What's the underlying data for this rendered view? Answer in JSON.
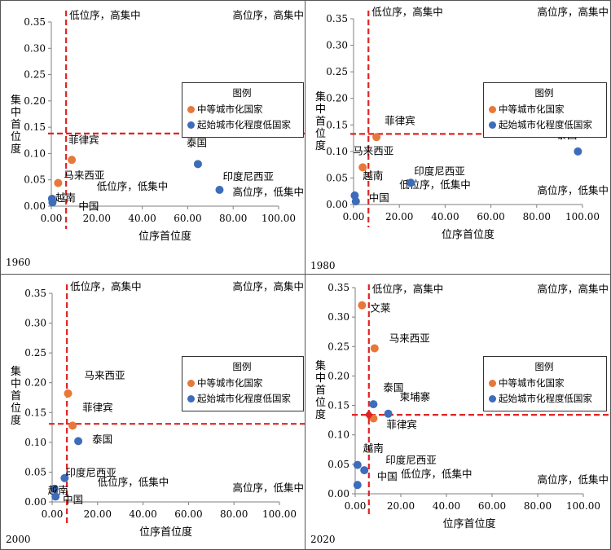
{
  "colors": {
    "medium": "#E8773A",
    "low": "#3D6DBA",
    "refline": "#E02424",
    "axis": "#7F7F7F",
    "text": "#000000"
  },
  "legend": {
    "title": "图例",
    "medium_label": "中等城市化国家",
    "low_label": "起始城市化程度低国家"
  },
  "chart_data": [
    {
      "type": "scatter",
      "year": "1960",
      "xlabel": "位序首位度",
      "ylabel": "集中首位度",
      "xlim": [
        0,
        100
      ],
      "ylim": [
        0,
        0.35
      ],
      "x_ticks": [
        "0.00",
        "20.00",
        "40.00",
        "60.00",
        "80.00",
        "100.00"
      ],
      "y_ticks": [
        "0.00",
        "0.05",
        "0.10",
        "0.15",
        "0.20",
        "0.25",
        "0.30",
        "0.35"
      ],
      "ref_x": 6.5,
      "ref_y": 0.138,
      "quadrant_labels": {
        "top_left": "低位序，高集中",
        "top_right": "高位序，高集中",
        "bottom_left": "低位序，低集中",
        "bottom_right": "高位序，低集中"
      },
      "series": [
        {
          "name": "中等城市化国家",
          "points": [
            {
              "label": "菲律宾",
              "x": 9.0,
              "y": 0.088
            },
            {
              "label": "马来西亚",
              "x": 3.0,
              "y": 0.044
            }
          ]
        },
        {
          "name": "起始城市化程度低国家",
          "points": [
            {
              "label": "泰国",
              "x": 64.5,
              "y": 0.08
            },
            {
              "label": "印度尼西亚",
              "x": 74.0,
              "y": 0.031
            },
            {
              "label": "越南",
              "x": 0.3,
              "y": 0.014
            },
            {
              "label": "中国",
              "x": 0.5,
              "y": 0.007
            }
          ]
        }
      ]
    },
    {
      "type": "scatter",
      "year": "1980",
      "xlabel": "位序首位度",
      "ylabel": "集中首位度",
      "xlim": [
        0,
        100
      ],
      "ylim": [
        0,
        0.35
      ],
      "x_ticks": [
        "0.00",
        "20.00",
        "40.00",
        "60.00",
        "80.00",
        "100.00"
      ],
      "y_ticks": [
        "0.00",
        "0.05",
        "0.10",
        "0.15",
        "0.20",
        "0.25",
        "0.30",
        "0.35"
      ],
      "ref_x": 6.5,
      "ref_y": 0.133,
      "quadrant_labels": {
        "top_left": "低位序，高集中",
        "top_right": "高位序，高集中",
        "bottom_left": "低位序，低集中",
        "bottom_right": "高位序，低集中"
      },
      "series": [
        {
          "name": "中等城市化国家",
          "points": [
            {
              "label": "菲律宾",
              "x": 10.0,
              "y": 0.127
            },
            {
              "label": "马来西亚",
              "x": 4.0,
              "y": 0.07
            }
          ]
        },
        {
          "name": "起始城市化程度低国家",
          "points": [
            {
              "label": "泰国",
              "x": 98.0,
              "y": 0.1
            },
            {
              "label": "印度尼西亚",
              "x": 25.0,
              "y": 0.041
            },
            {
              "label": "越南",
              "x": 0.5,
              "y": 0.017
            },
            {
              "label": "中国",
              "x": 1.0,
              "y": 0.006
            }
          ]
        }
      ]
    },
    {
      "type": "scatter",
      "year": "2000",
      "xlabel": "位序首位度",
      "ylabel": "集中首位度",
      "xlim": [
        0,
        100
      ],
      "ylim": [
        0,
        0.35
      ],
      "x_ticks": [
        "0.00",
        "20.00",
        "40.00",
        "60.00",
        "80.00",
        "100.00"
      ],
      "y_ticks": [
        "0.00",
        "0.05",
        "0.10",
        "0.15",
        "0.20",
        "0.25",
        "0.30",
        "0.35"
      ],
      "ref_x": 6.5,
      "ref_y": 0.131,
      "quadrant_labels": {
        "top_left": "低位序，高集中",
        "top_right": "高位序，高集中",
        "bottom_left": "低位序，低集中",
        "bottom_right": "高位序，低集中"
      },
      "series": [
        {
          "name": "中等城市化国家",
          "points": [
            {
              "label": "马来西亚",
              "x": 7.0,
              "y": 0.182
            },
            {
              "label": "菲律宾",
              "x": 9.0,
              "y": 0.128
            }
          ]
        },
        {
          "name": "起始城市化程度低国家",
          "points": [
            {
              "label": "泰国",
              "x": 11.5,
              "y": 0.102
            },
            {
              "label": "印度尼西亚",
              "x": 5.5,
              "y": 0.04
            },
            {
              "label": "越南",
              "x": 1.0,
              "y": 0.022
            },
            {
              "label": "中国",
              "x": 1.5,
              "y": 0.009
            }
          ]
        }
      ]
    },
    {
      "type": "scatter",
      "year": "2020",
      "xlabel": "位序首位度",
      "ylabel": "集中首位度",
      "xlim": [
        0,
        100
      ],
      "ylim": [
        0,
        0.35
      ],
      "x_ticks": [
        "0.00",
        "20.00",
        "40.00",
        "60.00",
        "80.00",
        "100.00"
      ],
      "y_ticks": [
        "0.00",
        "0.05",
        "0.10",
        "0.15",
        "0.20",
        "0.25",
        "0.30",
        "0.35"
      ],
      "ref_x": 6.0,
      "ref_y": 0.134,
      "quadrant_labels": {
        "top_left": "低位序，高集中",
        "top_right": "高位序，高集中",
        "bottom_left": "低位序，低集中",
        "bottom_right": "高位序，低集中"
      },
      "series": [
        {
          "name": "中等城市化国家",
          "points": [
            {
              "label": "文莱",
              "x": 3.0,
              "y": 0.32
            },
            {
              "label": "马来西亚",
              "x": 8.5,
              "y": 0.247
            },
            {
              "label": "菲律宾",
              "x": 8.0,
              "y": 0.128
            }
          ]
        },
        {
          "name": "起始城市化程度低国家",
          "points": [
            {
              "label": "泰国",
              "x": 8.0,
              "y": 0.152
            },
            {
              "label": "柬埔寨",
              "x": 14.5,
              "y": 0.136
            },
            {
              "label": "越南",
              "x": 1.0,
              "y": 0.049
            },
            {
              "label": "印度尼西亚",
              "x": 4.0,
              "y": 0.04
            },
            {
              "label": "中国",
              "x": 1.0,
              "y": 0.015
            }
          ]
        }
      ]
    }
  ]
}
